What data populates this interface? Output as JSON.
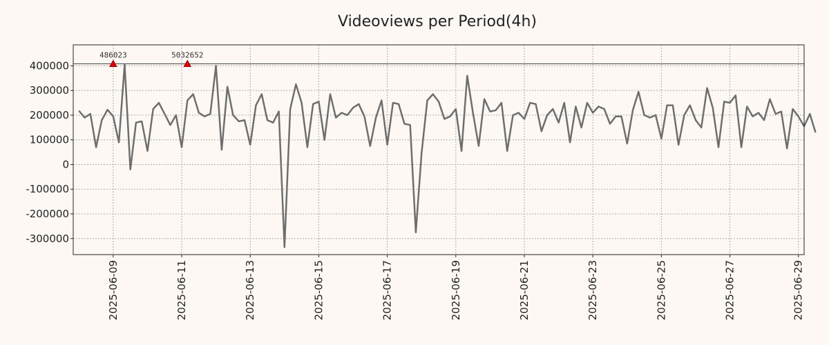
{
  "chart_data": {
    "type": "line",
    "title": "Videoviews per Period(4h)",
    "xlabel": "",
    "ylabel": "",
    "x_start": "2025-06-08 00:00",
    "x_end": "2025-06-29 04:00",
    "xlim": [
      "2025-06-07 20:00",
      "2025-06-29 04:00"
    ],
    "ylim": [
      -365000,
      485000
    ],
    "yticks": [
      -300000,
      -200000,
      -100000,
      0,
      100000,
      200000,
      300000,
      400000
    ],
    "ytick_labels": [
      "-300000",
      "-200000",
      "-100000",
      "0",
      "100000",
      "200000",
      "300000",
      "400000"
    ],
    "xticks": [
      "2025-06-09",
      "2025-06-11",
      "2025-06-13",
      "2025-06-15",
      "2025-06-17",
      "2025-06-19",
      "2025-06-21",
      "2025-06-23",
      "2025-06-25",
      "2025-06-27",
      "2025-06-29"
    ],
    "grid": true,
    "reference_line": 408000,
    "series": [
      {
        "name": "",
        "color": "#6e6e6e",
        "values": [
          218000,
          190000,
          205000,
          70000,
          180000,
          222000,
          195000,
          90000,
          405000,
          -20000,
          170000,
          175000,
          55000,
          225000,
          250000,
          205000,
          160000,
          200000,
          70000,
          260000,
          285000,
          210000,
          195000,
          205000,
          400000,
          60000,
          315000,
          200000,
          175000,
          180000,
          80000,
          240000,
          285000,
          180000,
          170000,
          215000,
          -335000,
          225000,
          325000,
          250000,
          70000,
          245000,
          255000,
          100000,
          285000,
          190000,
          210000,
          200000,
          230000,
          245000,
          195000,
          75000,
          190000,
          260000,
          80000,
          250000,
          245000,
          165000,
          160000,
          -275000,
          45000,
          260000,
          285000,
          255000,
          185000,
          195000,
          225000,
          55000,
          360000,
          210000,
          75000,
          265000,
          215000,
          220000,
          250000,
          55000,
          200000,
          210000,
          185000,
          250000,
          245000,
          135000,
          200000,
          225000,
          170000,
          250000,
          90000,
          235000,
          150000,
          250000,
          210000,
          235000,
          225000,
          165000,
          195000,
          195000,
          85000,
          220000,
          295000,
          200000,
          190000,
          200000,
          105000,
          240000,
          240000,
          80000,
          200000,
          240000,
          180000,
          150000,
          310000,
          230000,
          70000,
          255000,
          250000,
          280000,
          70000,
          235000,
          195000,
          210000,
          180000,
          265000,
          205000,
          215000,
          65000,
          225000,
          195000,
          155000,
          205000,
          130000
        ]
      }
    ],
    "annotations": [
      {
        "x": "2025-06-09 00:00",
        "y": 408000,
        "label": "486023"
      },
      {
        "x": "2025-06-11 04:00",
        "y": 408000,
        "label": "5032652"
      }
    ]
  }
}
